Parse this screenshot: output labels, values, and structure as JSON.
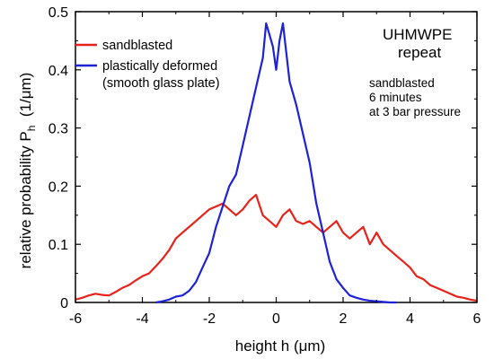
{
  "chart_data": {
    "type": "line",
    "xlabel_prefix": "height h  (",
    "xlabel_unit": "μm",
    "xlabel_suffix": ")",
    "ylabel_main": "relative probability P",
    "ylabel_sub": "h",
    "ylabel_unit": "(1/μm)",
    "xlim": [
      -6,
      6
    ],
    "ylim": [
      0,
      0.5
    ],
    "xticks": [
      -6,
      -4,
      -2,
      0,
      2,
      4,
      6
    ],
    "yticks": [
      0,
      0.1,
      0.2,
      0.3,
      0.4,
      0.5
    ],
    "xtick_labels": [
      "-6",
      "-4",
      "-2",
      "0",
      "2",
      "4",
      "6"
    ],
    "ytick_labels": [
      "0",
      "0.1",
      "0.2",
      "0.3",
      "0.4",
      "0.5"
    ],
    "grid": false,
    "legend_position": "top-left",
    "legend": [
      {
        "label": "sandblasted",
        "color": "#e8221b"
      },
      {
        "label": "plastically deformed",
        "label2": "(smooth glass plate)",
        "color": "#1d22d6"
      }
    ],
    "annotation_title": [
      "UHMWPE",
      "repeat"
    ],
    "annotation_note": [
      "sandblasted",
      "6 minutes",
      "at 3 bar pressure"
    ],
    "series": [
      {
        "name": "sandblasted",
        "color": "#e8221b",
        "x": [
          -6.0,
          -5.8,
          -5.6,
          -5.4,
          -5.2,
          -5.0,
          -4.8,
          -4.6,
          -4.4,
          -4.2,
          -4.0,
          -3.8,
          -3.6,
          -3.4,
          -3.2,
          -3.0,
          -2.8,
          -2.6,
          -2.4,
          -2.2,
          -2.0,
          -1.8,
          -1.6,
          -1.4,
          -1.2,
          -1.0,
          -0.8,
          -0.6,
          -0.4,
          -0.2,
          0.0,
          0.2,
          0.4,
          0.6,
          0.8,
          1.0,
          1.2,
          1.4,
          1.6,
          1.8,
          2.0,
          2.2,
          2.4,
          2.6,
          2.8,
          3.0,
          3.2,
          3.4,
          3.6,
          3.8,
          4.0,
          4.2,
          4.4,
          4.6,
          4.8,
          5.0,
          5.2,
          5.4,
          5.6,
          5.8,
          6.0
        ],
        "y": [
          0.005,
          0.008,
          0.012,
          0.015,
          0.013,
          0.012,
          0.018,
          0.025,
          0.03,
          0.038,
          0.045,
          0.05,
          0.062,
          0.075,
          0.09,
          0.11,
          0.12,
          0.13,
          0.14,
          0.15,
          0.16,
          0.165,
          0.17,
          0.16,
          0.15,
          0.16,
          0.175,
          0.185,
          0.15,
          0.14,
          0.13,
          0.15,
          0.16,
          0.14,
          0.135,
          0.14,
          0.13,
          0.12,
          0.13,
          0.14,
          0.12,
          0.11,
          0.12,
          0.13,
          0.1,
          0.12,
          0.1,
          0.09,
          0.08,
          0.07,
          0.06,
          0.045,
          0.04,
          0.03,
          0.025,
          0.02,
          0.015,
          0.01,
          0.008,
          0.005,
          0.003
        ]
      },
      {
        "name": "plastically deformed",
        "color": "#1d22d6",
        "x": [
          -3.6,
          -3.4,
          -3.2,
          -3.0,
          -2.8,
          -2.6,
          -2.4,
          -2.2,
          -2.0,
          -1.8,
          -1.6,
          -1.4,
          -1.2,
          -1.0,
          -0.8,
          -0.6,
          -0.4,
          -0.3,
          -0.2,
          -0.1,
          0.0,
          0.1,
          0.2,
          0.3,
          0.4,
          0.6,
          0.8,
          1.0,
          1.2,
          1.4,
          1.6,
          1.8,
          2.0,
          2.2,
          2.4,
          2.6,
          2.8,
          3.0,
          3.2,
          3.4,
          3.6
        ],
        "y": [
          0.0,
          0.002,
          0.005,
          0.01,
          0.012,
          0.02,
          0.035,
          0.06,
          0.085,
          0.13,
          0.165,
          0.2,
          0.22,
          0.27,
          0.32,
          0.37,
          0.42,
          0.48,
          0.46,
          0.44,
          0.4,
          0.45,
          0.48,
          0.43,
          0.38,
          0.34,
          0.29,
          0.24,
          0.17,
          0.12,
          0.07,
          0.04,
          0.025,
          0.012,
          0.008,
          0.005,
          0.003,
          0.002,
          0.001,
          0.0,
          0.0
        ]
      }
    ]
  }
}
